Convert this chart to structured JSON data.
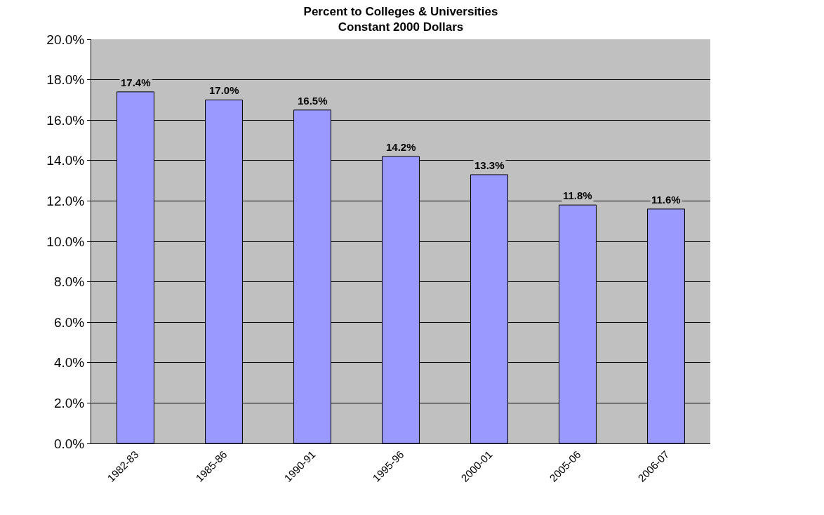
{
  "chart_data": {
    "type": "bar",
    "title": "Percent to Colleges & Universities",
    "subtitle": "Constant 2000 Dollars",
    "categories": [
      "1982-83",
      "1985-86",
      "1990-91",
      "1995-96",
      "2000-01",
      "2005-06",
      "2006-07"
    ],
    "values": [
      17.4,
      17.0,
      16.5,
      14.2,
      13.3,
      11.8,
      11.6
    ],
    "value_labels": [
      "17.4%",
      "17.0%",
      "16.5%",
      "14.2%",
      "13.3%",
      "11.8%",
      "11.6%"
    ],
    "color": "#9999ff",
    "ylim": [
      0,
      20
    ],
    "yticks": [
      {
        "value": 0,
        "label": "0.0%"
      },
      {
        "value": 2,
        "label": "2.0%"
      },
      {
        "value": 4,
        "label": "4.0%"
      },
      {
        "value": 6,
        "label": "6.0%"
      },
      {
        "value": 8,
        "label": "8.0%"
      },
      {
        "value": 10,
        "label": "10.0%"
      },
      {
        "value": 12,
        "label": "12.0%"
      },
      {
        "value": 14,
        "label": "14.0%"
      },
      {
        "value": 16,
        "label": "16.0%"
      },
      {
        "value": 18,
        "label": "18.0%"
      },
      {
        "value": 20,
        "label": "20.0%"
      }
    ],
    "grid": "y"
  }
}
